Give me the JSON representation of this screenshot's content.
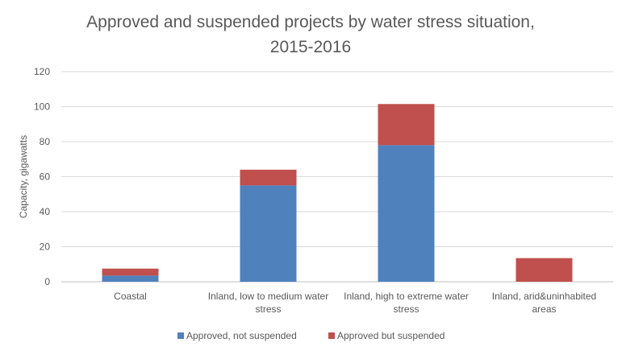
{
  "chart_data": {
    "type": "bar",
    "stacked": true,
    "title": "Approved and suspended projects by water stress situation, 2015-2016",
    "title_lines": [
      "Approved and suspended projects by water stress situation,",
      "2015-2016"
    ],
    "xlabel": "",
    "ylabel": "Capacity, gigawatts",
    "ylim": [
      0,
      120
    ],
    "yticks": [
      0,
      20,
      40,
      60,
      80,
      100,
      120
    ],
    "grid": true,
    "legend_position": "bottom",
    "categories": [
      "Coastal",
      "Inland, low to medium water stress",
      "Inland, high to extreme water stress",
      "Inland, arid&uninhabited areas"
    ],
    "category_lines": [
      [
        "Coastal"
      ],
      [
        "Inland, low to medium water",
        "stress"
      ],
      [
        "Inland, high to extreme water",
        "stress"
      ],
      [
        "Inland, arid&uninhabited",
        "areas"
      ]
    ],
    "series": [
      {
        "name": "Approved, not suspended",
        "color": "#4f81bd",
        "values": [
          3.5,
          55,
          78,
          0
        ]
      },
      {
        "name": "Approved but suspended",
        "color": "#c0504d",
        "values": [
          4,
          9,
          23.5,
          13.5
        ]
      }
    ]
  }
}
